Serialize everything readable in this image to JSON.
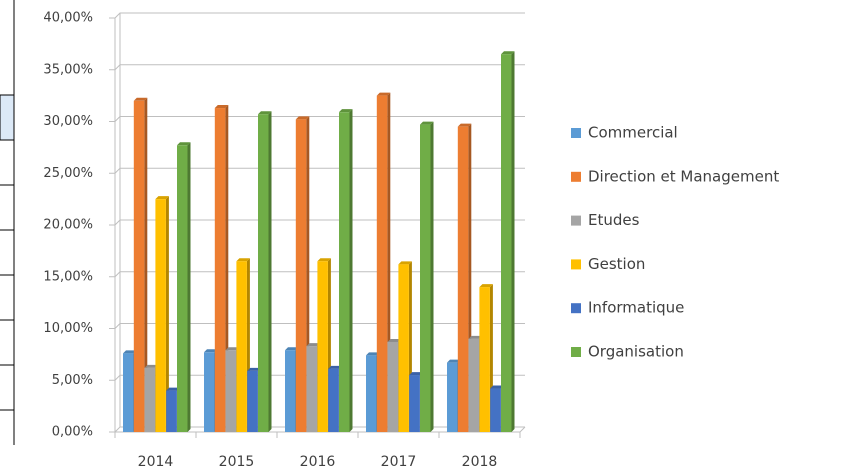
{
  "chart_data": {
    "type": "bar",
    "categories": [
      "2014",
      "2015",
      "2016",
      "2017",
      "2018"
    ],
    "series": [
      {
        "name": "Commercial",
        "color": "#5b9bd5",
        "values": [
          7.6,
          7.7,
          7.9,
          7.4,
          6.7
        ]
      },
      {
        "name": "Direction et Management",
        "color": "#ed7d31",
        "values": [
          32.0,
          31.3,
          30.2,
          32.5,
          29.5
        ]
      },
      {
        "name": "Etudes",
        "color": "#a5a5a5",
        "values": [
          6.2,
          7.9,
          8.3,
          8.7,
          9.0
        ]
      },
      {
        "name": "Gestion",
        "color": "#ffc000",
        "values": [
          22.5,
          16.5,
          16.5,
          16.2,
          14.0
        ]
      },
      {
        "name": "Informatique",
        "color": "#4472c4",
        "values": [
          4.0,
          5.9,
          6.1,
          5.5,
          4.2
        ]
      },
      {
        "name": "Organisation",
        "color": "#70ad47",
        "values": [
          27.7,
          30.7,
          30.9,
          29.7,
          36.5
        ]
      }
    ],
    "ylim": [
      0,
      40
    ],
    "yticks": [
      {
        "value": 0,
        "label": "0,00%"
      },
      {
        "value": 5,
        "label": "5,00%"
      },
      {
        "value": 10,
        "label": "10,00%"
      },
      {
        "value": 15,
        "label": "15,00%"
      },
      {
        "value": 20,
        "label": "20,00%"
      },
      {
        "value": 25,
        "label": "25,00%"
      },
      {
        "value": 30,
        "label": "30,00%"
      },
      {
        "value": 35,
        "label": "35,00%"
      },
      {
        "value": 40,
        "label": "40,00%"
      }
    ],
    "grid": true
  }
}
